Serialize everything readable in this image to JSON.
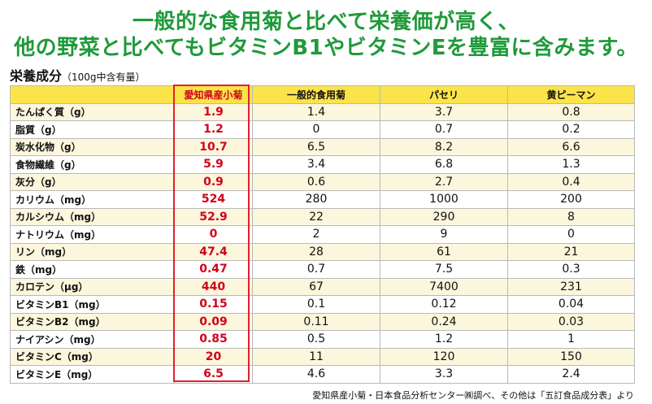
{
  "headline": {
    "line1": "一般的な食用菊と比べて栄養価が高く、",
    "line2": "他の野菜と比べてもビタミンB1やビタミンEを豊富に含みます。"
  },
  "section": {
    "title": "栄養成分",
    "note": "（100g中含有量）"
  },
  "table": {
    "columns": [
      "",
      "愛知県産小菊",
      "一般的食用菊",
      "パセリ",
      "黄ピーマン"
    ],
    "rows": [
      [
        "たんぱく質（g）",
        "1.9",
        "1.4",
        "3.7",
        "0.8"
      ],
      [
        "脂質（g）",
        "1.2",
        "0",
        "0.7",
        "0.2"
      ],
      [
        "炭水化物（g）",
        "10.7",
        "6.5",
        "8.2",
        "6.6"
      ],
      [
        "食物繊維（g）",
        "5.9",
        "3.4",
        "6.8",
        "1.3"
      ],
      [
        "灰分（g）",
        "0.9",
        "0.6",
        "2.7",
        "0.4"
      ],
      [
        "カリウム（mg）",
        "524",
        "280",
        "1000",
        "200"
      ],
      [
        "カルシウム（mg）",
        "52.9",
        "22",
        "290",
        "8"
      ],
      [
        "ナトリウム（mg）",
        "0",
        "2",
        "9",
        "0"
      ],
      [
        "リン（mg）",
        "47.4",
        "28",
        "61",
        "21"
      ],
      [
        "鉄（mg）",
        "0.47",
        "0.7",
        "7.5",
        "0.3"
      ],
      [
        "カロテン（μg）",
        "440",
        "67",
        "7400",
        "231"
      ],
      [
        "ビタミンB1（mg）",
        "0.15",
        "0.1",
        "0.12",
        "0.04"
      ],
      [
        "ビタミンB2（mg）",
        "0.09",
        "0.11",
        "0.24",
        "0.03"
      ],
      [
        "ナイアシン（mg）",
        "0.85",
        "0.5",
        "1.2",
        "1"
      ],
      [
        "ビタミンC（mg）",
        "20",
        "11",
        "120",
        "150"
      ],
      [
        "ビタミンE（mg）",
        "6.5",
        "4.6",
        "3.3",
        "2.4"
      ]
    ]
  },
  "source": "愛知県産小菊・日本食品分析センター㈱調べ、その他は「五訂食品成分表」より",
  "colors": {
    "headline": "#1f9a3a",
    "header_bg": "#fbe34a",
    "highlight": "#d0021b",
    "row_alt": "#fcf6dc"
  }
}
